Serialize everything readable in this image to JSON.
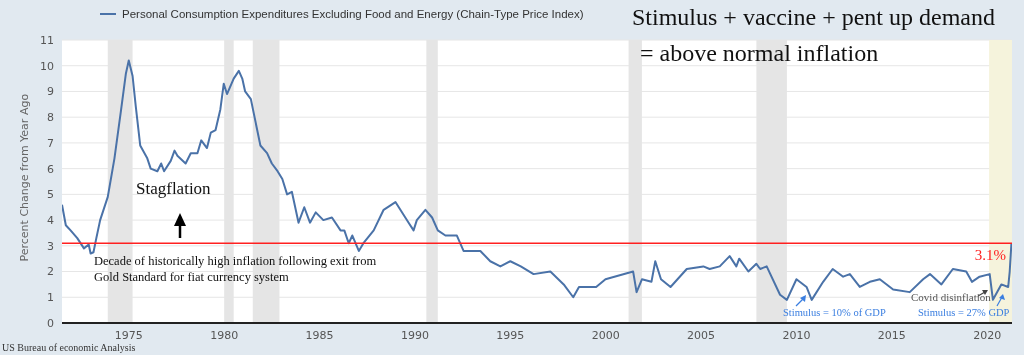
{
  "chart_data": {
    "type": "line",
    "title": "Stimulus + vaccine + pent up demand",
    "subtitle": "= above normal inflation",
    "ylabel": "Percent Change from Year Ago",
    "annotations": [
      "Stagflation",
      "Decade of historically high inflation following exit from Gold Standard for fiat currency system",
      "Stimulus = 10% of GDP",
      "Covid disinflation",
      "Stimulus = 27% GDP",
      "US Bureau of economic Analysis"
    ],
    "xlim": [
      1971.5,
      2021.3
    ],
    "xticks": [
      1975,
      1980,
      1985,
      1990,
      1995,
      2000,
      2005,
      2010,
      2015,
      2020
    ],
    "ylim": [
      0,
      11
    ],
    "yticks": [
      0,
      1,
      2,
      3,
      4,
      5,
      6,
      7,
      8,
      9,
      10,
      11
    ],
    "grid": "y",
    "legend": "top",
    "ref_lines": [
      {
        "axis": "y",
        "value": 3.1,
        "label": "3.1%",
        "color": "#ff2020"
      }
    ],
    "bands": [
      {
        "axis": "x",
        "from": 1973.9,
        "to": 1975.2,
        "color": "#e5e5e5"
      },
      {
        "axis": "x",
        "from": 1980.0,
        "to": 1980.5,
        "color": "#e5e5e5"
      },
      {
        "axis": "x",
        "from": 1981.5,
        "to": 1982.9,
        "color": "#e5e5e5"
      },
      {
        "axis": "x",
        "from": 1990.6,
        "to": 1991.2,
        "color": "#e5e5e5"
      },
      {
        "axis": "x",
        "from": 2001.2,
        "to": 2001.9,
        "color": "#e5e5e5"
      },
      {
        "axis": "x",
        "from": 2007.9,
        "to": 2009.5,
        "color": "#e5e5e5"
      },
      {
        "axis": "x",
        "from": 2020.1,
        "to": 2021.3,
        "color": "#f5f3dc"
      }
    ],
    "series": [
      {
        "name": "Personal Consumption Expenditures Excluding Food and Energy (Chain-Type Price Index)",
        "color": "#4a72a8",
        "x": [
          1971.5,
          1971.7,
          1971.95,
          1972.3,
          1972.65,
          1972.9,
          1973.0,
          1973.15,
          1973.3,
          1973.5,
          1973.9,
          1974.25,
          1974.6,
          1974.85,
          1975.0,
          1975.2,
          1975.37,
          1975.6,
          1975.97,
          1976.15,
          1976.5,
          1976.7,
          1976.85,
          1977.2,
          1977.4,
          1977.55,
          1977.98,
          1978.25,
          1978.6,
          1978.8,
          1979.1,
          1979.3,
          1979.55,
          1979.8,
          1979.98,
          1980.15,
          1980.5,
          1980.77,
          1980.95,
          1981.1,
          1981.4,
          1981.9,
          1982.25,
          1982.5,
          1982.8,
          1983.05,
          1983.3,
          1983.55,
          1983.9,
          1984.2,
          1984.5,
          1984.8,
          1985.2,
          1985.65,
          1986.1,
          1986.3,
          1986.53,
          1986.72,
          1987.06,
          1987.3,
          1987.84,
          1988.36,
          1988.98,
          1989.67,
          1989.93,
          1990.1,
          1990.55,
          1990.9,
          1991.2,
          1991.6,
          1992.2,
          1992.55,
          1993.43,
          1993.95,
          1994.48,
          1995.0,
          1995.55,
          1996.22,
          1997.1,
          1997.8,
          1998.3,
          1998.6,
          1999.5,
          1999.99,
          2001.44,
          2001.62,
          2001.9,
          2002.4,
          2002.6,
          2002.9,
          2003.4,
          2004.25,
          2005.12,
          2005.45,
          2005.98,
          2006.5,
          2006.85,
          2007.0,
          2007.48,
          2007.9,
          2008.1,
          2008.44,
          2009.14,
          2009.5,
          2010.0,
          2010.53,
          2010.8,
          2011.4,
          2011.9,
          2012.45,
          2012.8,
          2013.32,
          2013.85,
          2014.37,
          2015.07,
          2015.94,
          2016.64,
          2017.0,
          2017.6,
          2018.2,
          2018.9,
          2019.2,
          2019.6,
          2020.13,
          2020.3,
          2020.74,
          2021.1,
          2021.18,
          2021.27
        ],
        "values": [
          4.6,
          3.8,
          3.6,
          3.3,
          2.9,
          3.05,
          2.7,
          2.75,
          3.3,
          4.0,
          4.9,
          6.4,
          8.3,
          9.7,
          10.2,
          9.6,
          8.4,
          6.9,
          6.4,
          6.0,
          5.9,
          6.2,
          5.9,
          6.3,
          6.7,
          6.5,
          6.2,
          6.6,
          6.6,
          7.1,
          6.8,
          7.4,
          7.5,
          8.3,
          9.3,
          8.9,
          9.5,
          9.8,
          9.5,
          9.0,
          8.7,
          6.9,
          6.6,
          6.2,
          5.9,
          5.6,
          5.0,
          5.1,
          3.9,
          4.5,
          3.9,
          4.3,
          4.0,
          4.1,
          3.6,
          3.6,
          3.1,
          3.4,
          2.8,
          3.1,
          3.6,
          4.4,
          4.7,
          3.9,
          3.6,
          4.0,
          4.4,
          4.1,
          3.6,
          3.4,
          3.4,
          2.8,
          2.8,
          2.4,
          2.2,
          2.4,
          2.2,
          1.9,
          2.0,
          1.5,
          1.0,
          1.4,
          1.4,
          1.7,
          2.0,
          1.2,
          1.7,
          1.6,
          2.4,
          1.7,
          1.4,
          2.1,
          2.2,
          2.1,
          2.2,
          2.6,
          2.2,
          2.5,
          2.0,
          2.3,
          2.1,
          2.2,
          1.1,
          0.9,
          1.7,
          1.4,
          0.9,
          1.6,
          2.1,
          1.8,
          1.9,
          1.4,
          1.6,
          1.7,
          1.3,
          1.2,
          1.7,
          1.9,
          1.5,
          2.1,
          2.0,
          1.6,
          1.8,
          1.9,
          0.9,
          1.5,
          1.4,
          2.0,
          3.1
        ]
      }
    ]
  }
}
